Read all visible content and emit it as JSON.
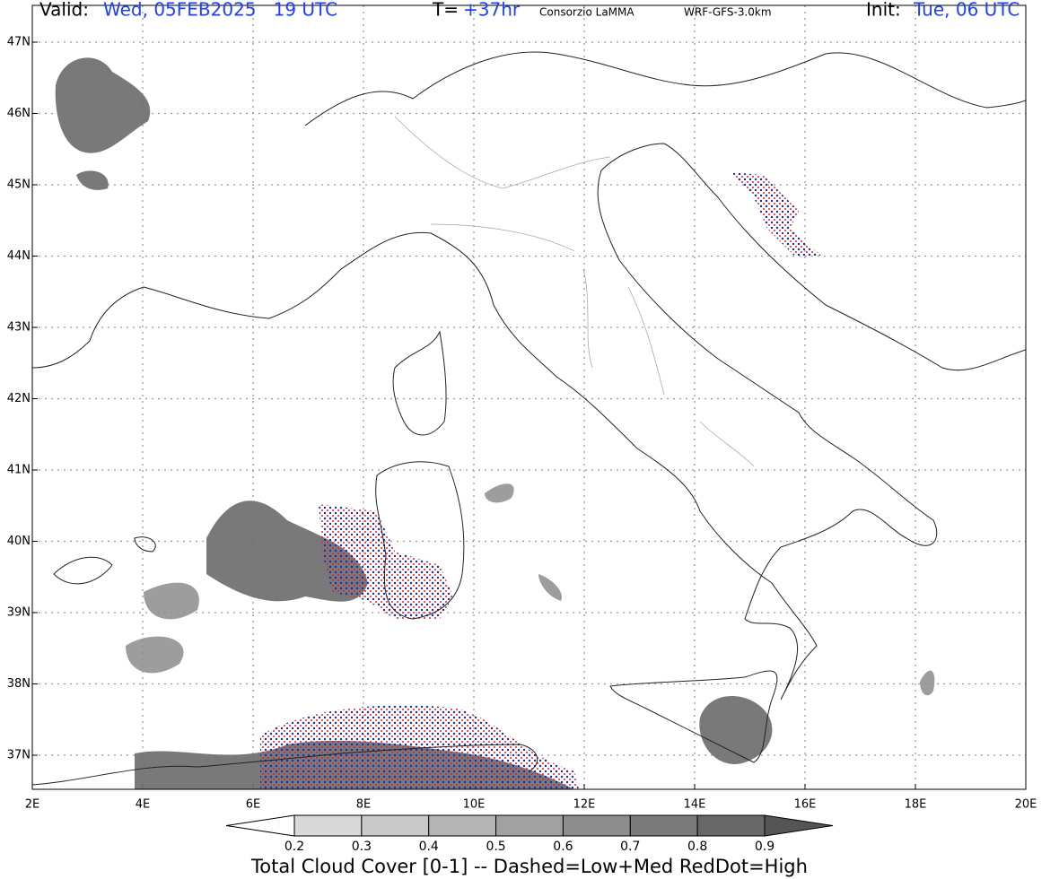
{
  "header": {
    "valid_label": "Valid:",
    "valid_time": "Wed, 05FEB2025   19 UTC",
    "lead_label": "T=",
    "lead_time": "+37hr",
    "institution": "Consorzio LaMMA",
    "model": "WRF-GFS-3.0km",
    "init_label": "Init:",
    "init_time": "Tue, 06 UTC"
  },
  "map": {
    "lat_labels": [
      "47N",
      "46N",
      "45N",
      "44N",
      "43N",
      "42N",
      "41N",
      "40N",
      "39N",
      "38N",
      "37N"
    ],
    "lon_labels": [
      "2E",
      "4E",
      "6E",
      "8E",
      "10E",
      "12E",
      "14E",
      "16E",
      "18E",
      "20E"
    ]
  },
  "colorbar": {
    "labels": [
      "0.2",
      "0.3",
      "0.4",
      "0.5",
      "0.6",
      "0.7",
      "0.8",
      "0.9"
    ],
    "colors": [
      "#ffffff",
      "#d9d9d9",
      "#c9c9c9",
      "#b5b5b5",
      "#a1a1a1",
      "#8d8d8d",
      "#7a7a7a",
      "#686868",
      "#555555"
    ]
  },
  "caption": "Total Cloud Cover [0-1] -- Dashed=Low+Med RedDot=High"
}
